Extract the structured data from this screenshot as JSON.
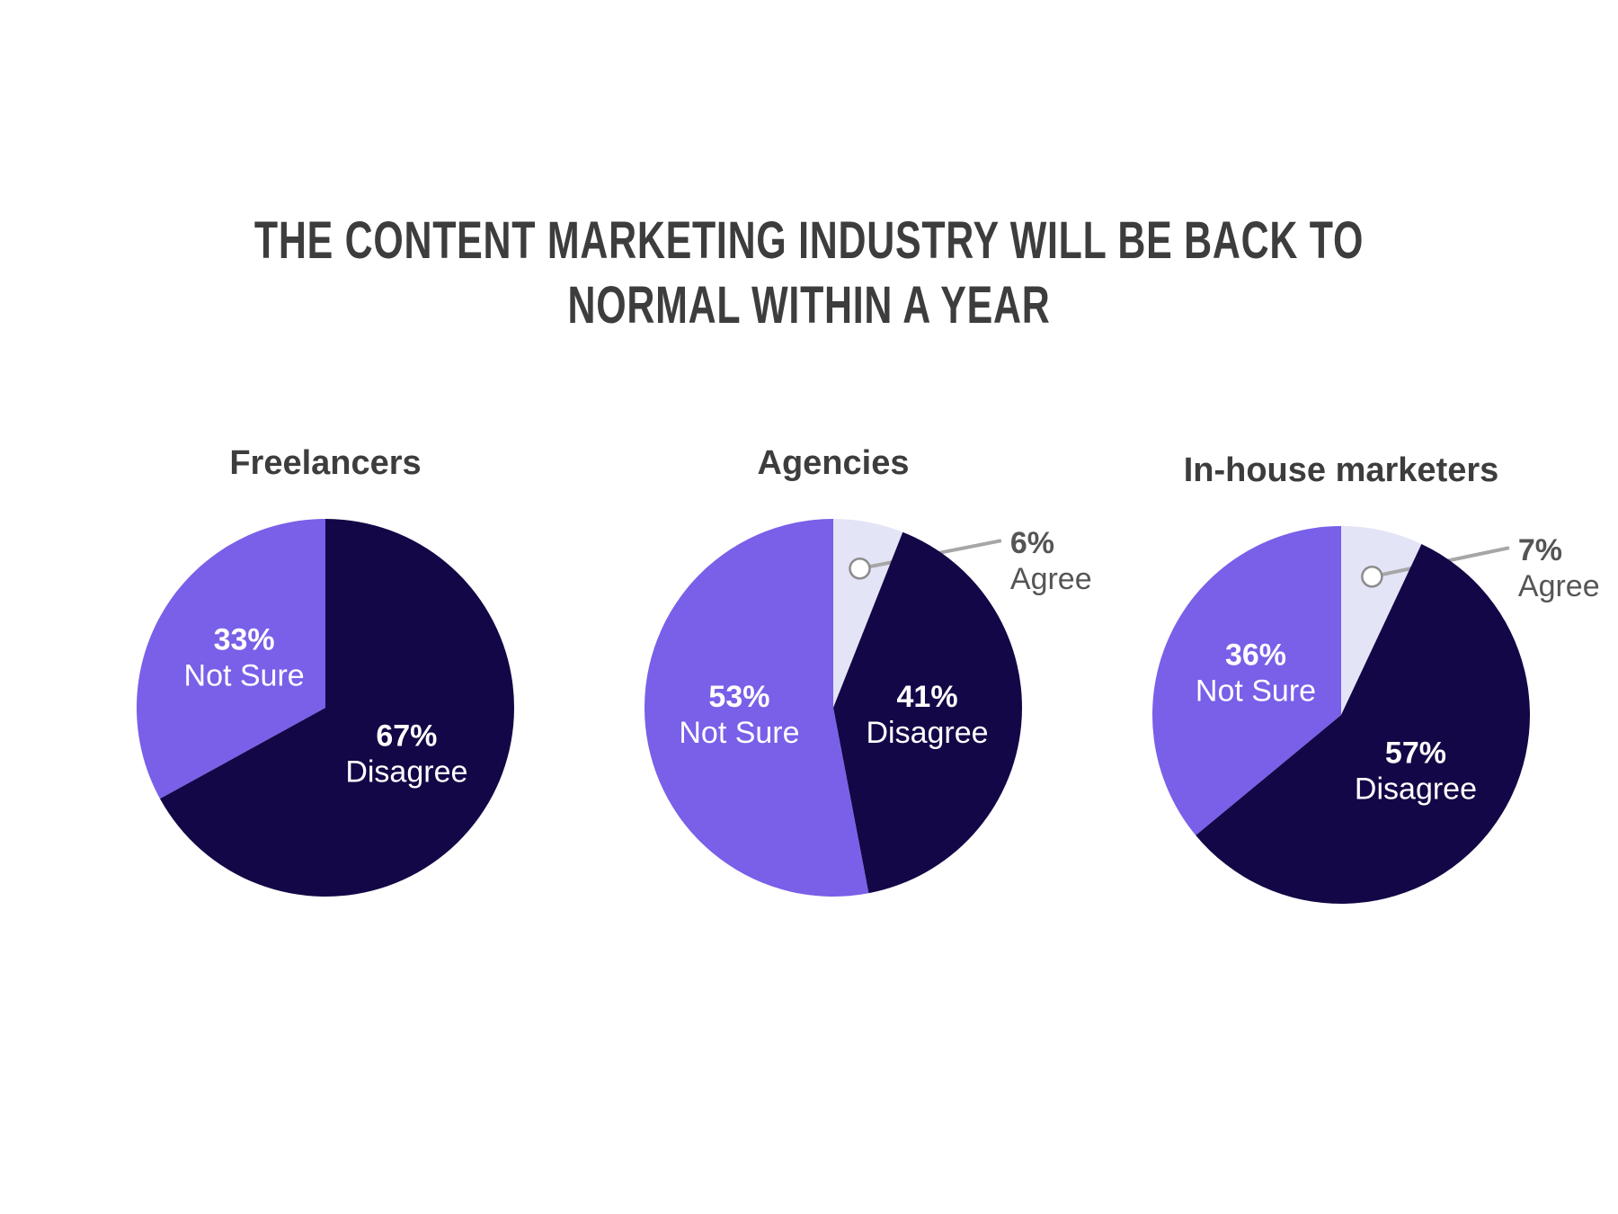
{
  "title": "THE CONTENT MARKETING INDUSTRY WILL BE BACK TO NORMAL WITHIN A YEAR",
  "chart_data": [
    {
      "type": "pie",
      "title": "Freelancers",
      "categories": [
        "Disagree",
        "Not Sure"
      ],
      "values": [
        67,
        33
      ],
      "value_labels": [
        "67%",
        "33%"
      ],
      "colors": [
        "#140747",
        "#7a5fe8"
      ]
    },
    {
      "type": "pie",
      "title": "Agencies",
      "categories": [
        "Agree",
        "Disagree",
        "Not Sure"
      ],
      "values": [
        6,
        41,
        53
      ],
      "value_labels": [
        "6%",
        "41%",
        "53%"
      ],
      "colors": [
        "#e4e4f7",
        "#140747",
        "#7a5fe8"
      ]
    },
    {
      "type": "pie",
      "title": "In-house marketers",
      "categories": [
        "Agree",
        "Disagree",
        "Not Sure"
      ],
      "values": [
        7,
        57,
        36
      ],
      "value_labels": [
        "7%",
        "57%",
        "36%"
      ],
      "colors": [
        "#e4e4f7",
        "#140747",
        "#7a5fe8"
      ]
    }
  ]
}
